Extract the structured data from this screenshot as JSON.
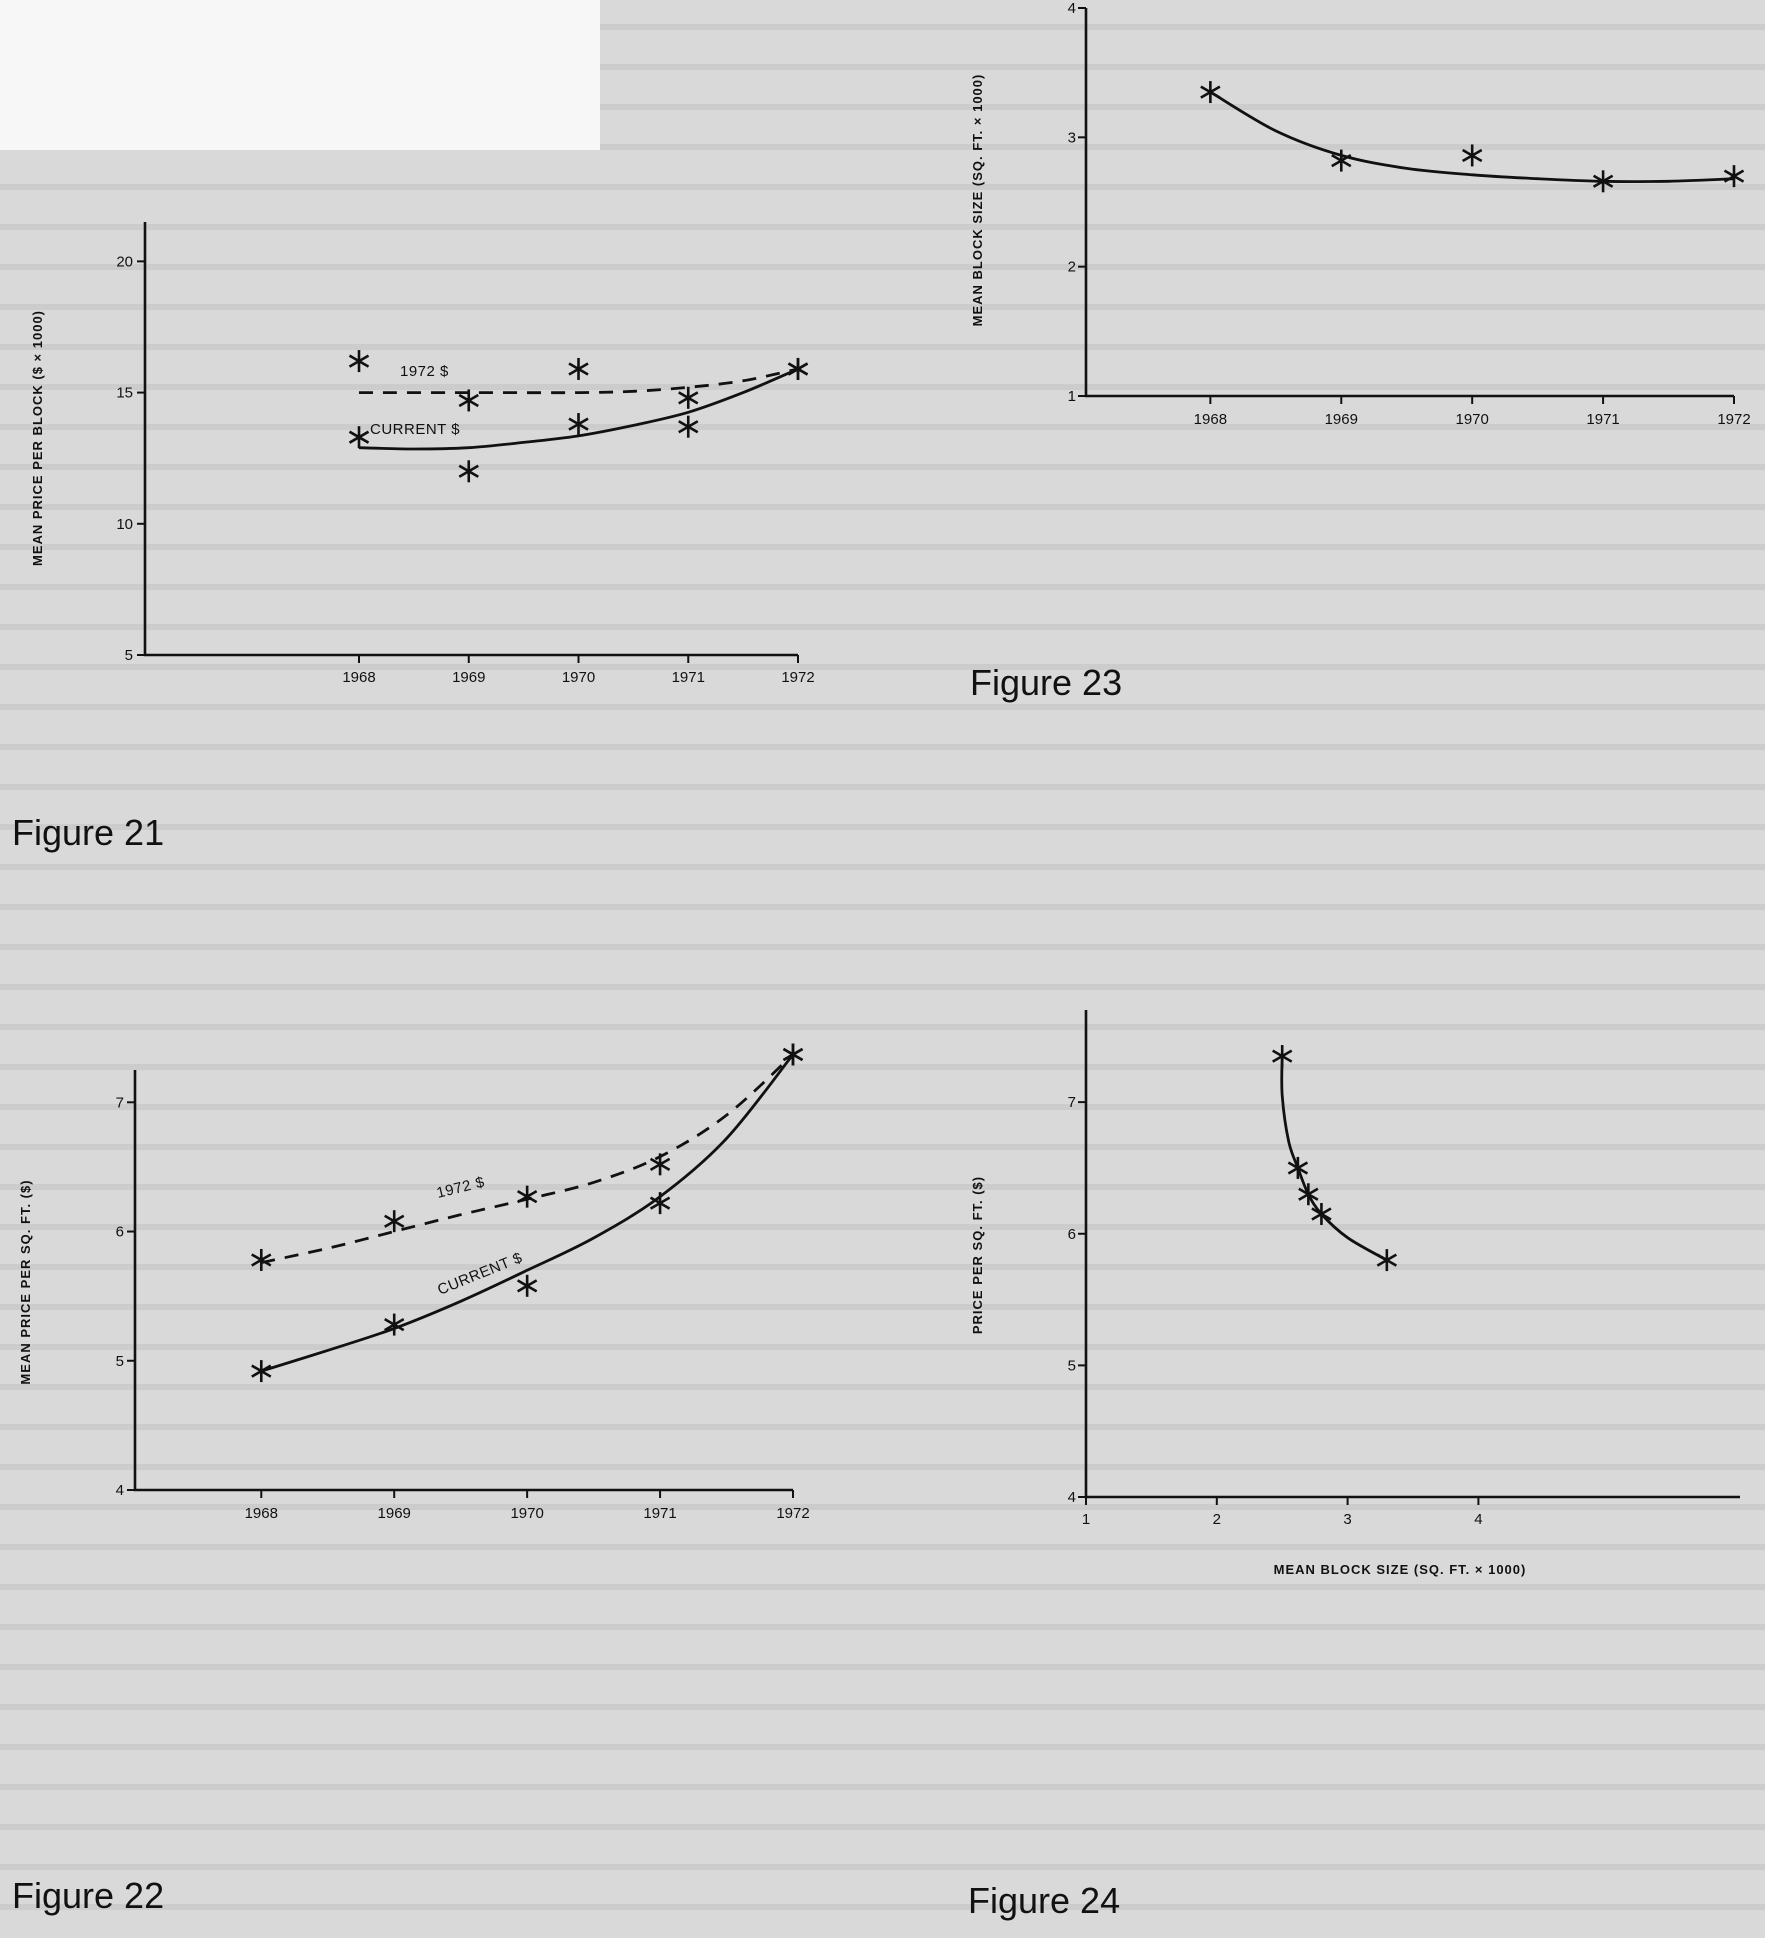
{
  "captions": {
    "fig21": "Figure 21",
    "fig22": "Figure 22",
    "fig23": "Figure 23",
    "fig24": "Figure 24"
  },
  "chart_data": [
    {
      "id": "fig21",
      "type": "line",
      "title": "",
      "xlabel": "",
      "ylabel": "MEAN PRICE PER BLOCK ($ × 1000)",
      "x": [
        1968,
        1969,
        1970,
        1971,
        1972
      ],
      "xlim": [
        1966.05,
        1972
      ],
      "ylim": [
        5,
        21.5
      ],
      "yticks": [
        5,
        10,
        15,
        20
      ],
      "xticks": [
        1968,
        1969,
        1970,
        1971,
        1972
      ],
      "grid": false,
      "series": [
        {
          "name": "1972 $",
          "style": "dashed",
          "points": [
            [
              1968,
              16.2
            ],
            [
              1969,
              14.7
            ],
            [
              1970,
              15.9
            ],
            [
              1971,
              14.8
            ],
            [
              1972,
              15.9
            ]
          ],
          "curve": [
            [
              1968,
              15.0
            ],
            [
              1969,
              15.0
            ],
            [
              1970,
              15.0
            ],
            [
              1970.5,
              15.05
            ],
            [
              1971,
              15.2
            ],
            [
              1971.5,
              15.45
            ],
            [
              1972,
              15.9
            ]
          ]
        },
        {
          "name": "CURRENT $",
          "style": "solid",
          "points": [
            [
              1968,
              13.3
            ],
            [
              1969,
              12.0
            ],
            [
              1970,
              13.8
            ],
            [
              1971,
              13.7
            ],
            [
              1972,
              15.9
            ]
          ],
          "curve": [
            [
              1968,
              12.9
            ],
            [
              1968.5,
              12.85
            ],
            [
              1969,
              12.9
            ],
            [
              1969.5,
              13.1
            ],
            [
              1970,
              13.35
            ],
            [
              1970.5,
              13.75
            ],
            [
              1971,
              14.25
            ],
            [
              1971.5,
              15.0
            ],
            [
              1972,
              15.9
            ]
          ]
        }
      ]
    },
    {
      "id": "fig22",
      "type": "line",
      "title": "",
      "xlabel": "",
      "ylabel": "MEAN PRICE PER SQ. FT. ($)",
      "x": [
        1968,
        1969,
        1970,
        1971,
        1972
      ],
      "xlim": [
        1967.05,
        1972
      ],
      "ylim": [
        4,
        7.25
      ],
      "yticks": [
        4,
        5,
        6,
        7
      ],
      "xticks": [
        1968,
        1969,
        1970,
        1971,
        1972
      ],
      "grid": false,
      "series": [
        {
          "name": "1972 $",
          "style": "dashed",
          "points": [
            [
              1968,
              5.78
            ],
            [
              1969,
              6.08
            ],
            [
              1970,
              6.27
            ],
            [
              1971,
              6.52
            ],
            [
              1972,
              7.37
            ]
          ],
          "curve": [
            [
              1968,
              5.76
            ],
            [
              1968.5,
              5.87
            ],
            [
              1969,
              6.0
            ],
            [
              1969.5,
              6.13
            ],
            [
              1970,
              6.25
            ],
            [
              1970.5,
              6.38
            ],
            [
              1971,
              6.58
            ],
            [
              1971.5,
              6.9
            ],
            [
              1972,
              7.37
            ]
          ]
        },
        {
          "name": "CURRENT $",
          "style": "solid",
          "points": [
            [
              1968,
              4.92
            ],
            [
              1969,
              5.28
            ],
            [
              1970,
              5.58
            ],
            [
              1971,
              6.22
            ],
            [
              1972,
              7.37
            ]
          ],
          "curve": [
            [
              1968,
              4.92
            ],
            [
              1968.5,
              5.08
            ],
            [
              1969,
              5.25
            ],
            [
              1969.5,
              5.46
            ],
            [
              1970,
              5.7
            ],
            [
              1970.5,
              5.95
            ],
            [
              1971,
              6.27
            ],
            [
              1971.5,
              6.72
            ],
            [
              1972,
              7.37
            ]
          ]
        }
      ]
    },
    {
      "id": "fig23",
      "type": "line",
      "title": "",
      "xlabel": "",
      "ylabel": "MEAN BLOCK SIZE (SQ. FT. × 1000)",
      "x": [
        1968,
        1969,
        1970,
        1971,
        1972
      ],
      "xlim": [
        1967.05,
        1972
      ],
      "ylim": [
        1,
        4
      ],
      "yticks": [
        1,
        2,
        3,
        4
      ],
      "xticks": [
        1968,
        1969,
        1970,
        1971,
        1972
      ],
      "grid": false,
      "series": [
        {
          "name": "",
          "style": "solid",
          "points": [
            [
              1968,
              3.35
            ],
            [
              1969,
              2.82
            ],
            [
              1970,
              2.86
            ],
            [
              1971,
              2.66
            ],
            [
              1972,
              2.7
            ]
          ],
          "curve": [
            [
              1968,
              3.35
            ],
            [
              1968.5,
              3.05
            ],
            [
              1969,
              2.86
            ],
            [
              1969.5,
              2.76
            ],
            [
              1970,
              2.71
            ],
            [
              1970.5,
              2.68
            ],
            [
              1971,
              2.66
            ],
            [
              1971.5,
              2.66
            ],
            [
              1972,
              2.68
            ]
          ]
        }
      ]
    },
    {
      "id": "fig24",
      "type": "line",
      "title": "",
      "xlabel": "MEAN BLOCK SIZE (SQ. FT. × 1000)",
      "ylabel": "PRICE PER SQ. FT. ($)",
      "xlim": [
        1,
        6
      ],
      "ylim": [
        4,
        7.7
      ],
      "xticks": [
        1,
        2,
        3,
        4
      ],
      "yticks": [
        4,
        5,
        6,
        7
      ],
      "grid": false,
      "series": [
        {
          "name": "",
          "style": "solid",
          "points": [
            [
              2.5,
              7.35
            ],
            [
              2.62,
              6.5
            ],
            [
              2.7,
              6.3
            ],
            [
              2.8,
              6.15
            ],
            [
              3.3,
              5.8
            ]
          ],
          "curve": [
            [
              2.5,
              7.35
            ],
            [
              2.5,
              7.05
            ],
            [
              2.55,
              6.7
            ],
            [
              2.62,
              6.5
            ],
            [
              2.7,
              6.3
            ],
            [
              2.8,
              6.15
            ],
            [
              3.0,
              5.97
            ],
            [
              3.3,
              5.8
            ]
          ]
        }
      ]
    }
  ]
}
